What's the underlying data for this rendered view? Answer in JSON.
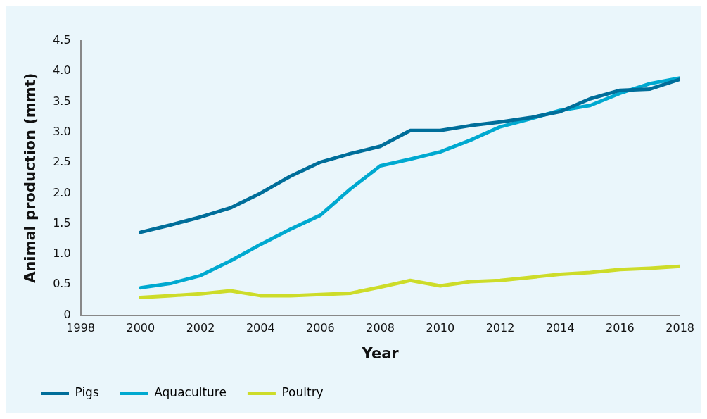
{
  "chart_data": {
    "type": "line",
    "xlabel": "Year",
    "ylabel": "Animal production (mmt)",
    "x": [
      2000,
      2001,
      2002,
      2003,
      2004,
      2005,
      2006,
      2007,
      2008,
      2009,
      2010,
      2011,
      2012,
      2013,
      2014,
      2015,
      2016,
      2017,
      2018
    ],
    "series": [
      {
        "name": "Pigs",
        "color": "#006e9a",
        "values": [
          1.36,
          1.48,
          1.61,
          1.76,
          2.0,
          2.28,
          2.51,
          2.65,
          2.77,
          3.03,
          3.03,
          3.11,
          3.17,
          3.24,
          3.34,
          3.55,
          3.69,
          3.71,
          3.87
        ]
      },
      {
        "name": "Aquaculture",
        "color": "#00a9d0",
        "values": [
          0.45,
          0.52,
          0.65,
          0.89,
          1.16,
          1.41,
          1.64,
          2.07,
          2.45,
          2.56,
          2.68,
          2.87,
          3.09,
          3.22,
          3.36,
          3.44,
          3.64,
          3.8,
          3.89
        ]
      },
      {
        "name": "Poultry",
        "color": "#cddc29",
        "values": [
          0.29,
          0.32,
          0.35,
          0.4,
          0.32,
          0.32,
          0.34,
          0.36,
          0.46,
          0.57,
          0.48,
          0.55,
          0.57,
          0.62,
          0.67,
          0.7,
          0.75,
          0.77,
          0.8
        ]
      }
    ],
    "xlim": [
      1998,
      2018
    ],
    "xticks": [
      1998,
      2000,
      2002,
      2004,
      2006,
      2008,
      2010,
      2012,
      2014,
      2016,
      2018
    ],
    "ylim": [
      0,
      4.5
    ],
    "yticks": [
      0,
      0.5,
      {
        "value": 1,
        "label": "1.0"
      },
      1.5,
      {
        "value": 2,
        "label": "2.0"
      },
      2.5,
      {
        "value": 3,
        "label": "3.0"
      },
      3.5,
      {
        "value": 4,
        "label": "4.0"
      },
      4.5
    ],
    "grid": false,
    "legend": "bottom left",
    "marker": "none",
    "line_style": "solid"
  }
}
